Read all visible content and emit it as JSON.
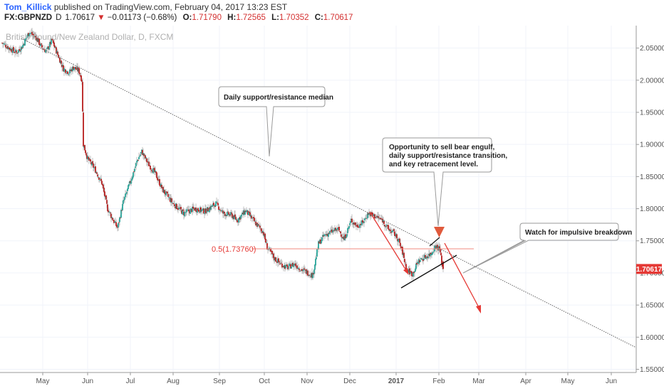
{
  "header": {
    "author": "Tom_Killick",
    "published_text": "published on TradingView.com, February 04, 2017 13:23 EST",
    "symbol": "FX:GBPNZD",
    "interval": "D",
    "last": "1.70617",
    "change": "−0.01173 (−0.68%)",
    "open_label": "O:",
    "open": "1.71790",
    "high_label": "H:",
    "high": "1.72565",
    "low_label": "L:",
    "low": "1.70352",
    "close_label": "C:",
    "close": "1.70617"
  },
  "chart_data": {
    "type": "candlestick",
    "watermark": "British Pound/New Zealand Dollar, D, FXCM",
    "x_ticks": [
      "May",
      "Jun",
      "Jul",
      "Aug",
      "Sep",
      "Oct",
      "Nov",
      "Dec",
      "2017",
      "Feb",
      "Mar",
      "Apr",
      "May",
      "Jun"
    ],
    "y_ticks": [
      "2.05000",
      "2.00000",
      "1.95000",
      "1.90000",
      "1.85000",
      "1.80000",
      "1.75000",
      "1.70000",
      "1.65000",
      "1.60000",
      "1.55000"
    ],
    "ylim": [
      1.545,
      2.085
    ],
    "last_price_label": "1.70617",
    "fib_label": "0.5(1.73760)",
    "fib_level": 1.7376,
    "annotations": [
      "Daily support/resistance median",
      "Opportunity to sell bear engulf, daily support/resistance transition, and key retracement level.",
      "Watch for impulsive breakdown"
    ],
    "path": [
      [
        0,
        2.058
      ],
      [
        10,
        2.05
      ],
      [
        20,
        2.043
      ],
      [
        28,
        2.052
      ],
      [
        38,
        2.075
      ],
      [
        48,
        2.066
      ],
      [
        55,
        2.052
      ],
      [
        62,
        2.045
      ],
      [
        70,
        2.062
      ],
      [
        78,
        2.04
      ],
      [
        86,
        2.018
      ],
      [
        94,
        2.012
      ],
      [
        100,
        2.02
      ],
      [
        108,
        2.014
      ],
      [
        112,
        2.0
      ],
      [
        114,
        1.9
      ],
      [
        120,
        1.878
      ],
      [
        130,
        1.862
      ],
      [
        140,
        1.84
      ],
      [
        148,
        1.8
      ],
      [
        156,
        1.782
      ],
      [
        162,
        1.77
      ],
      [
        170,
        1.81
      ],
      [
        180,
        1.842
      ],
      [
        190,
        1.876
      ],
      [
        196,
        1.889
      ],
      [
        205,
        1.87
      ],
      [
        215,
        1.855
      ],
      [
        225,
        1.83
      ],
      [
        240,
        1.808
      ],
      [
        255,
        1.793
      ],
      [
        270,
        1.8
      ],
      [
        285,
        1.796
      ],
      [
        300,
        1.808
      ],
      [
        310,
        1.793
      ],
      [
        322,
        1.79
      ],
      [
        330,
        1.782
      ],
      [
        342,
        1.797
      ],
      [
        356,
        1.777
      ],
      [
        366,
        1.765
      ],
      [
        372,
        1.74
      ],
      [
        382,
        1.723
      ],
      [
        390,
        1.715
      ],
      [
        400,
        1.708
      ],
      [
        410,
        1.714
      ],
      [
        420,
        1.705
      ],
      [
        430,
        1.7
      ],
      [
        436,
        1.696
      ],
      [
        444,
        1.745
      ],
      [
        452,
        1.758
      ],
      [
        462,
        1.764
      ],
      [
        472,
        1.768
      ],
      [
        480,
        1.752
      ],
      [
        490,
        1.782
      ],
      [
        498,
        1.773
      ],
      [
        506,
        1.778
      ],
      [
        514,
        1.793
      ],
      [
        524,
        1.788
      ],
      [
        534,
        1.782
      ],
      [
        542,
        1.768
      ],
      [
        550,
        1.762
      ],
      [
        556,
        1.752
      ],
      [
        562,
        1.732
      ],
      [
        568,
        1.705
      ],
      [
        576,
        1.698
      ],
      [
        584,
        1.718
      ],
      [
        594,
        1.725
      ],
      [
        602,
        1.73
      ],
      [
        608,
        1.742
      ],
      [
        614,
        1.738
      ],
      [
        618,
        1.71
      ],
      [
        619,
        1.706
      ]
    ]
  }
}
